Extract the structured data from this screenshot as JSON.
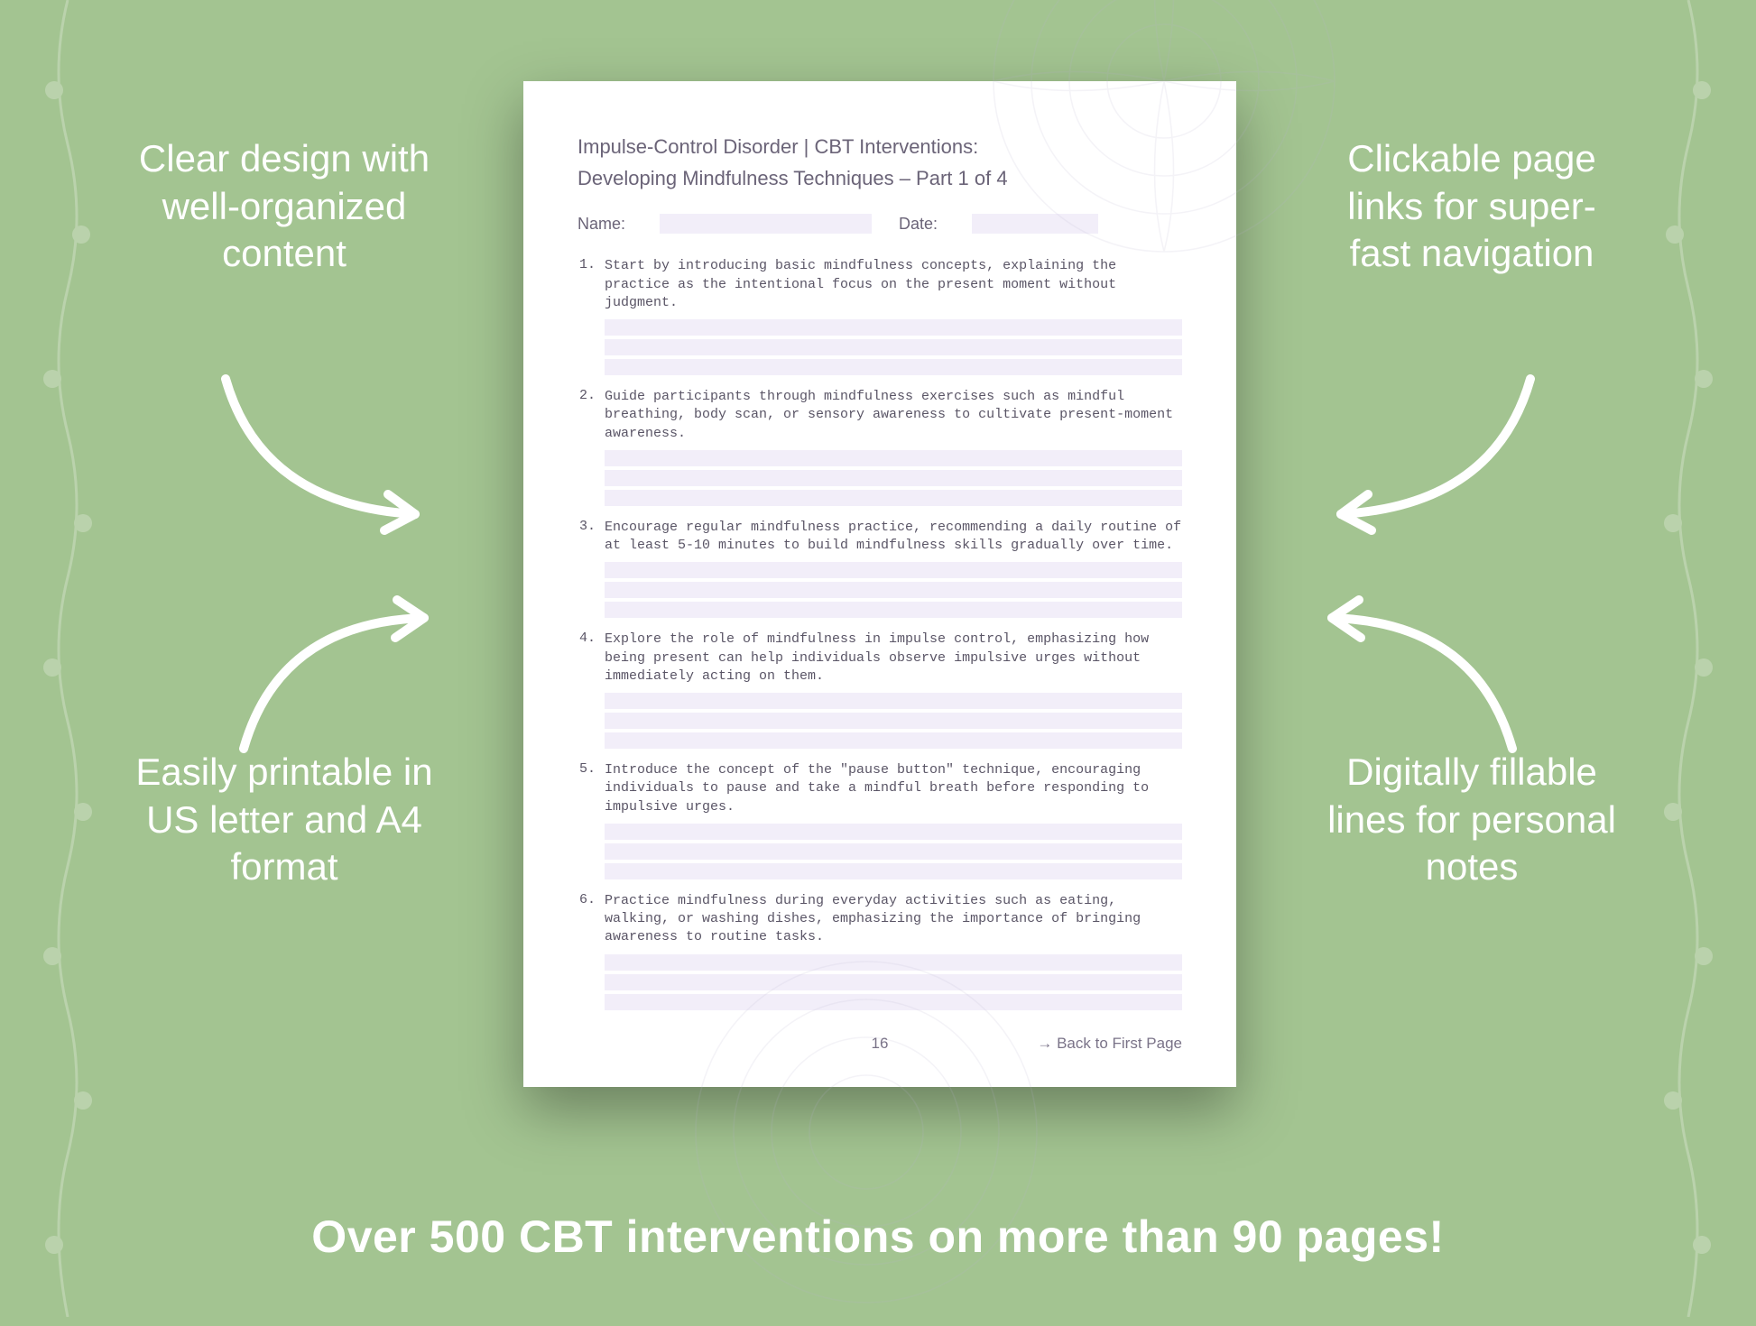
{
  "background_color": "#a3c491",
  "callouts": {
    "top_left": "Clear design with well-organized content",
    "top_right": "Clickable page links for super-fast navigation",
    "bottom_left": "Easily printable in US letter and A4 format",
    "bottom_right": "Digitally fillable lines for personal notes"
  },
  "tagline": "Over 500 CBT interventions on more than 90 pages!",
  "document": {
    "header_line1": "Impulse-Control Disorder | CBT Interventions:",
    "header_line2": "Developing Mindfulness Techniques – Part 1 of 4",
    "name_label": "Name:",
    "date_label": "Date:",
    "items": [
      {
        "n": "1.",
        "text": "Start by introducing basic mindfulness concepts, explaining the practice as the intentional focus on the present moment without judgment."
      },
      {
        "n": "2.",
        "text": "Guide participants through mindfulness exercises such as mindful breathing, body scan, or sensory awareness to cultivate present-moment awareness."
      },
      {
        "n": "3.",
        "text": "Encourage regular mindfulness practice, recommending a daily routine of at least 5-10 minutes to build mindfulness skills gradually over time."
      },
      {
        "n": "4.",
        "text": "Explore the role of mindfulness in impulse control, emphasizing how being present can help individuals observe impulsive urges without immediately acting on them."
      },
      {
        "n": "5.",
        "text": "Introduce the concept of the \"pause button\" technique, encouraging individuals to pause and take a mindful breath before responding to impulsive urges."
      },
      {
        "n": "6.",
        "text": "Practice mindfulness during everyday activities such as eating, walking, or washing dishes, emphasizing the importance of bringing awareness to routine tasks."
      }
    ],
    "fill_line_color": "#f2eef9",
    "lines_per_item": 3,
    "page_number": "16",
    "back_link": "→ Back to First Page"
  },
  "style": {
    "callout_color": "#ffffff",
    "callout_fontsize": 42,
    "tagline_fontsize": 50,
    "doc_text_color": "#5a5566",
    "doc_head_color": "#6b6478",
    "arrow_color": "#ffffff",
    "mandala_color": "#b9b3d1"
  }
}
